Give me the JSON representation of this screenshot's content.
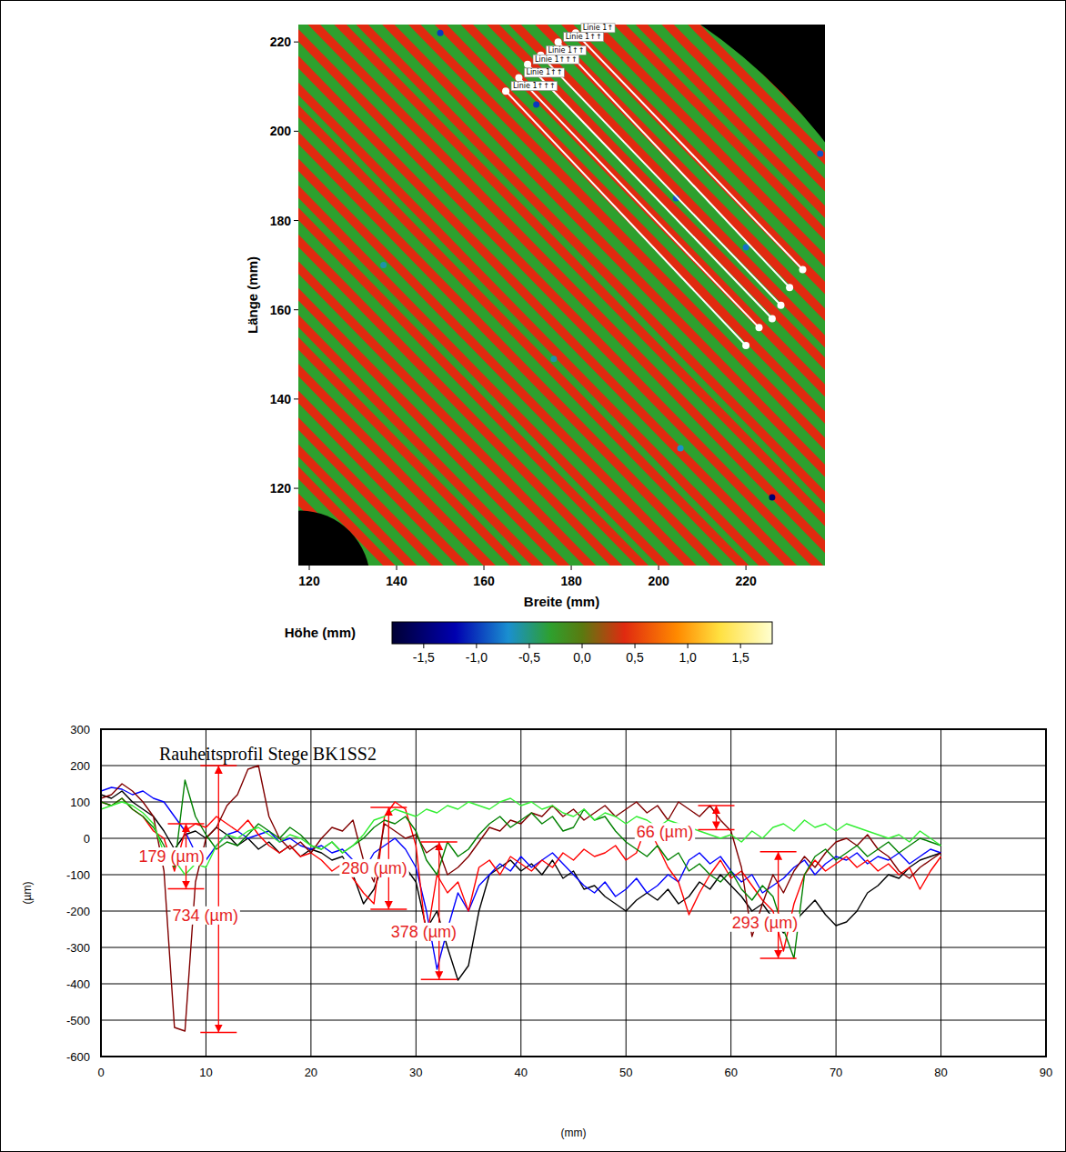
{
  "chart_data": [
    {
      "type": "surface_map",
      "xlabel": "Breite (mm)",
      "ylabel": "Länge (mm)",
      "xlim": [
        117.5,
        238.1
      ],
      "ylim": [
        102.7,
        223.9
      ],
      "xticks": [
        120,
        140,
        160,
        180,
        200,
        220
      ],
      "yticks": [
        120,
        140,
        160,
        180,
        200,
        220
      ],
      "colorbar": {
        "title": "Höhe (mm)",
        "range": [
          -1.8,
          1.8
        ],
        "ticks": [
          {
            "value": -1.5,
            "label": "-1,5"
          },
          {
            "value": -1,
            "label": "-1,0"
          },
          {
            "value": -0.5,
            "label": "-0,5"
          },
          {
            "value": 0,
            "label": "0,0"
          },
          {
            "value": 0.5,
            "label": "0,5"
          },
          {
            "value": 1,
            "label": "1,0"
          },
          {
            "value": 1.5,
            "label": "1,5"
          }
        ],
        "stops": [
          -1.8,
          -1.2,
          -0.7,
          -0.3,
          0,
          0.4,
          0.9,
          1.3,
          1.8
        ],
        "colors": [
          "#000033",
          "#0000b0",
          "#1a8fd0",
          "#2ea02e",
          "#5a7a10",
          "#e02a10",
          "#ff8a00",
          "#ffe040",
          "#ffffd0"
        ]
      },
      "ground_height": -0.3,
      "ridges": {
        "x_plus_y": [
          217,
          223,
          229,
          235,
          241,
          246,
          252,
          258,
          264,
          270,
          275,
          281,
          287,
          293,
          299,
          304,
          310,
          316,
          322,
          327,
          333,
          339,
          345,
          351,
          356,
          362,
          368,
          374,
          380,
          386,
          391,
          397,
          403,
          409,
          415,
          420,
          426,
          432,
          438,
          444,
          449,
          455,
          461,
          467
        ],
        "width": 2.8,
        "height": 0.4
      },
      "spots": {
        "x": [
          150,
          172,
          204,
          220,
          237,
          226,
          176,
          205,
          137
        ],
        "y": [
          222,
          206,
          185,
          174,
          195,
          118,
          149,
          129,
          170
        ],
        "heights": [
          -1.0,
          -1.0,
          -0.9,
          -0.8,
          -0.9,
          -1.5,
          -0.6,
          -0.7,
          -0.6
        ]
      },
      "sample_disk": {
        "cx": 140,
        "cy": 120,
        "r": 125
      },
      "holes": [
        {
          "cx": 118,
          "cy": 99,
          "r": 16
        }
      ],
      "lines": [
        {
          "label": "Linie 1↑",
          "x": [
            181,
            233
          ],
          "y": [
            222,
            169
          ]
        },
        {
          "label": "Linie 1↑↑",
          "x": [
            177,
            230
          ],
          "y": [
            220,
            165
          ]
        },
        {
          "label": "Linie 1↑↑",
          "x": [
            173,
            228
          ],
          "y": [
            217,
            161
          ]
        },
        {
          "label": "Linie 1↑↑↑",
          "x": [
            170,
            226
          ],
          "y": [
            215,
            158
          ]
        },
        {
          "label": "Linie 1↑↑",
          "x": [
            168,
            223
          ],
          "y": [
            212,
            156
          ]
        },
        {
          "label": "Linie 1↑↑↑",
          "x": [
            165,
            220
          ],
          "y": [
            209,
            152
          ]
        }
      ]
    },
    {
      "type": "line",
      "title": "Rauheitsprofil Stege BK1SS2",
      "xlabel": "(mm)",
      "ylabel": "(µm)",
      "xlim": [
        0,
        90
      ],
      "ylim": [
        -600,
        300
      ],
      "xticks": [
        0,
        10,
        20,
        30,
        40,
        50,
        60,
        70,
        80,
        90
      ],
      "yticks": [
        -600,
        -500,
        -400,
        -300,
        -200,
        -100,
        0,
        100,
        200,
        300
      ],
      "grid": true,
      "x": [
        0,
        1,
        2,
        3,
        4,
        5,
        6,
        7,
        8,
        9,
        10,
        11,
        12,
        13,
        14,
        15,
        16,
        17,
        18,
        19,
        20,
        21,
        22,
        23,
        24,
        25,
        26,
        27,
        28,
        29,
        30,
        31,
        32,
        33,
        34,
        35,
        36,
        37,
        38,
        39,
        40,
        41,
        42,
        43,
        44,
        45,
        46,
        47,
        48,
        49,
        50,
        51,
        52,
        53,
        54,
        55,
        56,
        57,
        58,
        59,
        60,
        61,
        62,
        63,
        64,
        65,
        66,
        67,
        68,
        69,
        70,
        71,
        72,
        73,
        74,
        75,
        76,
        77,
        78,
        79,
        80
      ],
      "series": [
        {
          "color": "#000000",
          "values": [
            120,
            110,
            130,
            100,
            80,
            60,
            20,
            -30,
            10,
            20,
            0,
            30,
            10,
            -20,
            0,
            -30,
            -10,
            -40,
            -20,
            -50,
            -30,
            -40,
            -60,
            -50,
            -100,
            -180,
            -140,
            -60,
            -100,
            -80,
            -120,
            -250,
            -200,
            -300,
            -390,
            -350,
            -200,
            -100,
            -80,
            -60,
            -90,
            -70,
            -100,
            -60,
            -110,
            -90,
            -140,
            -130,
            -160,
            -180,
            -200,
            -170,
            -150,
            -170,
            -140,
            -180,
            -160,
            -120,
            -140,
            -100,
            -130,
            -160,
            -200,
            -180,
            -220,
            -260,
            -230,
            -200,
            -170,
            -210,
            -240,
            -230,
            -200,
            -150,
            -130,
            -100,
            -110,
            -80,
            -60,
            -50,
            -40
          ]
        },
        {
          "color": "#0000ff",
          "values": [
            130,
            140,
            135,
            120,
            130,
            110,
            100,
            60,
            20,
            -40,
            -60,
            -20,
            10,
            20,
            0,
            10,
            20,
            -10,
            0,
            -20,
            -30,
            -20,
            -40,
            -30,
            -60,
            -90,
            -40,
            -20,
            0,
            -30,
            -80,
            -200,
            -360,
            -250,
            -150,
            -200,
            -130,
            -100,
            -70,
            -90,
            -50,
            -80,
            -60,
            -40,
            -70,
            -100,
            -130,
            -150,
            -120,
            -160,
            -140,
            -110,
            -150,
            -130,
            -100,
            -120,
            -60,
            -40,
            -70,
            -50,
            -90,
            -120,
            -100,
            -150,
            -130,
            -110,
            -80,
            -60,
            -100,
            -70,
            -50,
            -60,
            -40,
            -70,
            -50,
            -60,
            -40,
            -70,
            -50,
            -30,
            -40
          ]
        },
        {
          "color": "#ff0000",
          "values": [
            100,
            90,
            110,
            80,
            60,
            20,
            0,
            -90,
            20,
            40,
            30,
            60,
            40,
            20,
            50,
            10,
            -20,
            -40,
            -20,
            -50,
            -40,
            -60,
            -90,
            -70,
            -110,
            -150,
            -180,
            60,
            100,
            80,
            -20,
            -280,
            -100,
            -150,
            -120,
            -200,
            -80,
            -60,
            -100,
            -50,
            -70,
            -90,
            -60,
            -80,
            -40,
            -60,
            -30,
            -50,
            -40,
            -20,
            -60,
            -40,
            40,
            -20,
            -80,
            -120,
            -210,
            -150,
            -100,
            -60,
            -110,
            -90,
            -130,
            -170,
            -200,
            -310,
            -180,
            -100,
            -60,
            -90,
            -70,
            -50,
            -80,
            -60,
            -90,
            -70,
            -100,
            -80,
            -140,
            -90,
            -50
          ]
        },
        {
          "color": "#800000",
          "values": [
            110,
            120,
            150,
            130,
            100,
            60,
            -90,
            -520,
            -530,
            -120,
            0,
            30,
            90,
            120,
            190,
            200,
            60,
            0,
            -30,
            -10,
            -40,
            0,
            30,
            20,
            50,
            -60,
            -120,
            40,
            20,
            0,
            10,
            -40,
            -20,
            -100,
            -80,
            -50,
            -10,
            30,
            20,
            50,
            40,
            70,
            60,
            90,
            60,
            80,
            50,
            70,
            90,
            60,
            80,
            100,
            70,
            90,
            50,
            100,
            80,
            60,
            90,
            50,
            20,
            -80,
            -270,
            -180,
            -100,
            -150,
            -90,
            -50,
            -80,
            -40,
            -10,
            0,
            -20,
            10,
            -30,
            -50,
            -90,
            -110,
            -80,
            -60,
            -40
          ]
        },
        {
          "color": "#008000",
          "values": [
            100,
            90,
            110,
            80,
            60,
            30,
            -20,
            -80,
            160,
            60,
            10,
            -30,
            -10,
            -20,
            10,
            40,
            20,
            0,
            30,
            10,
            -20,
            -30,
            -10,
            -40,
            -20,
            0,
            30,
            50,
            40,
            60,
            20,
            -60,
            -100,
            -10,
            -50,
            -30,
            10,
            40,
            60,
            30,
            50,
            70,
            40,
            60,
            20,
            30,
            80,
            50,
            60,
            20,
            -10,
            -30,
            -50,
            -20,
            -60,
            -40,
            -90,
            -70,
            -100,
            -120,
            -90,
            -140,
            -170,
            -130,
            -160,
            -250,
            -330,
            -100,
            -50,
            -30,
            -60,
            -40,
            -20,
            -50,
            -30,
            -10,
            -40,
            -20,
            0,
            -10,
            -20
          ]
        },
        {
          "color": "#33ee33",
          "values": [
            80,
            90,
            100,
            90,
            70,
            40,
            -40,
            -60,
            -100,
            -70,
            -80,
            -20,
            10,
            0,
            20,
            30,
            10,
            -10,
            10,
            0,
            -20,
            -30,
            -10,
            -40,
            -20,
            10,
            50,
            60,
            80,
            70,
            60,
            80,
            70,
            90,
            80,
            100,
            90,
            80,
            100,
            110,
            90,
            100,
            80,
            90,
            70,
            60,
            80,
            50,
            70,
            60,
            40,
            60,
            50,
            30,
            50,
            40,
            30,
            20,
            10,
            0,
            10,
            -10,
            20,
            0,
            30,
            40,
            20,
            50,
            30,
            40,
            20,
            40,
            30,
            20,
            10,
            0,
            10,
            -10,
            20,
            0,
            -20
          ]
        }
      ],
      "annotations": [
        {
          "text": "179  (µm)",
          "x": 8.1,
          "y_top": 40,
          "y_bottom": -139,
          "label_x": 3.6,
          "label_y": -50
        },
        {
          "text": "734  (µm)",
          "x": 11.2,
          "y_top": 200,
          "y_bottom": -534,
          "label_x": 6.8,
          "label_y": -212
        },
        {
          "text": "280  (µm)",
          "x": 27.4,
          "y_top": 85,
          "y_bottom": -195,
          "label_x": 22.9,
          "label_y": -82
        },
        {
          "text": "378  (µm)",
          "x": 32.2,
          "y_top": -10,
          "y_bottom": -388,
          "label_x": 27.6,
          "label_y": -257
        },
        {
          "text": "66  (µm)",
          "x": 58.6,
          "y_top": 90,
          "y_bottom": 24,
          "label_x": 51,
          "label_y": 17
        },
        {
          "text": "293  (µm)",
          "x": 64.5,
          "y_top": -37,
          "y_bottom": -330,
          "label_x": 60.1,
          "label_y": -232
        }
      ]
    }
  ]
}
